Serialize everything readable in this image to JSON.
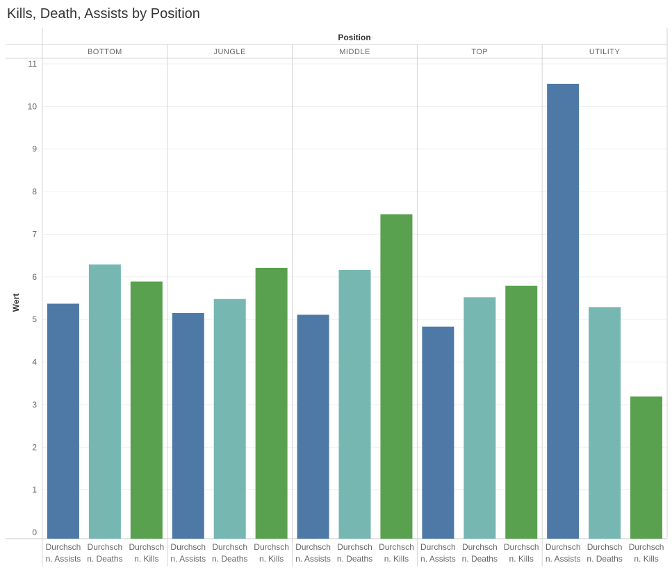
{
  "chart_data": {
    "type": "bar",
    "title": "Kills, Death, Assists by Position",
    "column_header_title": "Position",
    "ylabel": "Wert",
    "ylim": [
      0,
      11
    ],
    "yticks": [
      0,
      1,
      2,
      3,
      4,
      5,
      6,
      7,
      8,
      9,
      10,
      11
    ],
    "grid": true,
    "groups": [
      "BOTTOM",
      "JUNGLE",
      "MIDDLE",
      "TOP",
      "UTILITY"
    ],
    "measures": [
      {
        "label_line1": "Durchsch",
        "label_line2": "n. Assists",
        "color": "#4e79a7"
      },
      {
        "label_line1": "Durchsch",
        "label_line2": "n. Deaths",
        "color": "#76b7b2"
      },
      {
        "label_line1": "Durchsch",
        "label_line2": "n. Kills",
        "color": "#59a14f"
      }
    ],
    "values": [
      [
        5.37,
        6.29,
        5.89
      ],
      [
        5.15,
        5.48,
        6.21
      ],
      [
        5.11,
        6.16,
        7.47
      ],
      [
        4.83,
        5.52,
        5.79
      ],
      [
        10.53,
        5.29,
        3.19
      ]
    ]
  }
}
